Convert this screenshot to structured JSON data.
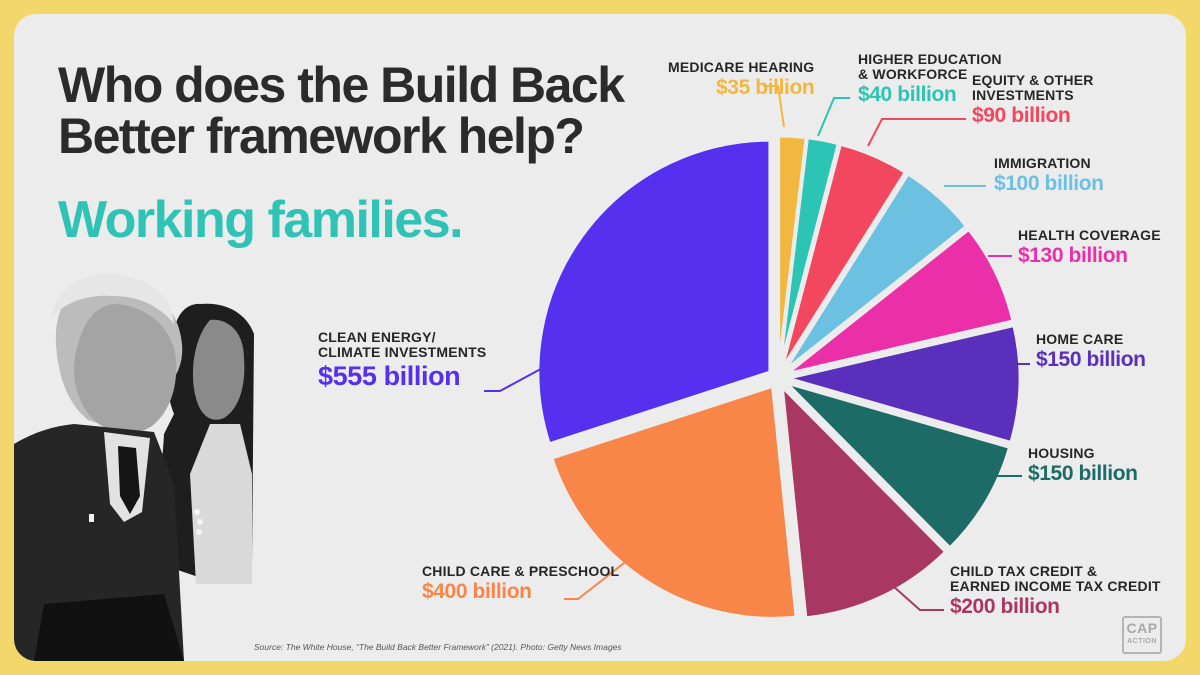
{
  "title": "Who does the Build Back Better framework help?",
  "subtitle": "Working families.",
  "source": "Source: The White House, “The Build Back Better Framework” (2021). Photo: Getty News Images",
  "logo": {
    "line1": "CAP",
    "line2": "ACTION"
  },
  "photo_description_icon": "people-photo-icon",
  "chart_data": {
    "type": "pie",
    "title": "Who does the Build Back Better framework help?",
    "unit": "billion",
    "slices": [
      {
        "label": "MEDICARE HEARING",
        "value": 35,
        "value_label": "$35 billion",
        "color": "#f2b73e"
      },
      {
        "label": "HIGHER EDUCATION\n& WORKFORCE",
        "value": 40,
        "value_label": "$40 billion",
        "color": "#2cc4b4"
      },
      {
        "label": "EQUITY & OTHER\nINVESTMENTS",
        "value": 90,
        "value_label": "$90 billion",
        "color": "#f2475f"
      },
      {
        "label": "IMMIGRATION",
        "value": 100,
        "value_label": "$100 billion",
        "color": "#6cc0e2"
      },
      {
        "label": "HEALTH COVERAGE",
        "value": 130,
        "value_label": "$130 billion",
        "color": "#eb2fa8"
      },
      {
        "label": "HOME CARE",
        "value": 150,
        "value_label": "$150 billion",
        "color": "#5a2fbb"
      },
      {
        "label": "HOUSING",
        "value": 150,
        "value_label": "$150 billion",
        "color": "#1c6b66"
      },
      {
        "label": "CHILD TAX CREDIT &\nEARNED INCOME TAX CREDIT",
        "value": 200,
        "value_label": "$200 billion",
        "color": "#a83762"
      },
      {
        "label": "CHILD CARE & PRESCHOOL",
        "value": 400,
        "value_label": "$400 billion",
        "color": "#f88649"
      },
      {
        "label": "CLEAN ENERGY/\nCLIMATE INVESTMENTS",
        "value": 555,
        "value_label": "$555 billion",
        "color": "#5530ee"
      }
    ]
  }
}
